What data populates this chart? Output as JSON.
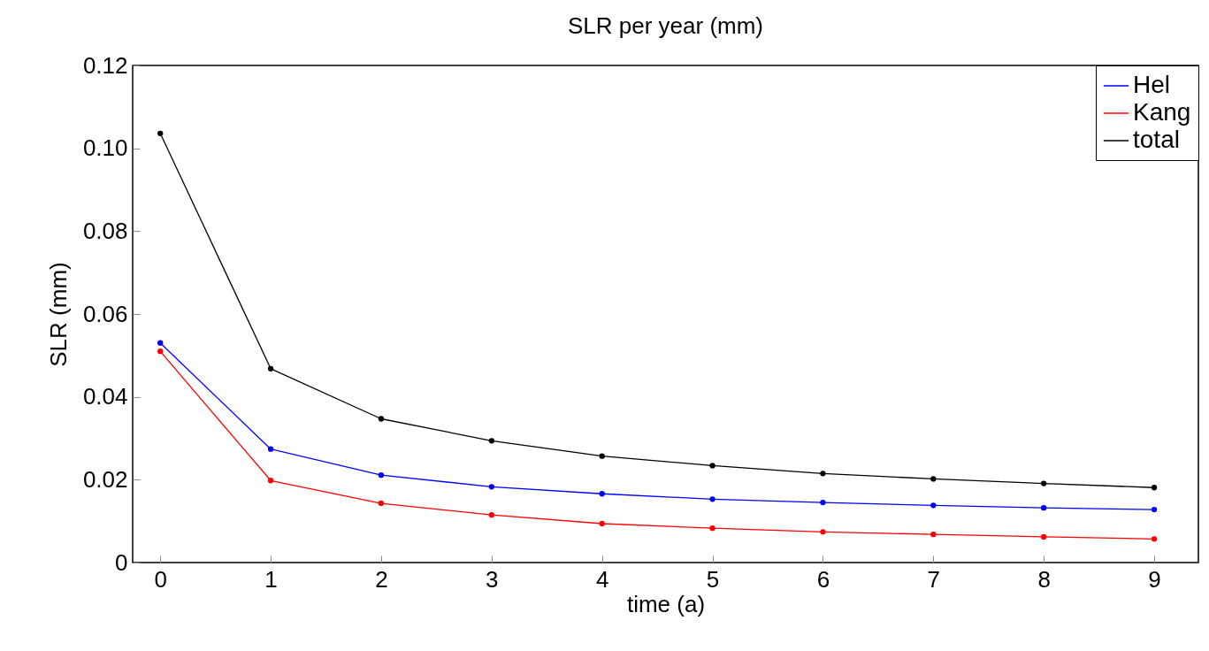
{
  "chart_data": {
    "type": "line",
    "title": "SLR per year (mm)",
    "xlabel": "time (a)",
    "ylabel": "SLR (mm)",
    "x": [
      0,
      1,
      2,
      3,
      4,
      5,
      6,
      7,
      8,
      9
    ],
    "series": [
      {
        "name": "Hel",
        "color": "#0000ff",
        "values": [
          0.053,
          0.0274,
          0.0211,
          0.0183,
          0.0166,
          0.0153,
          0.0145,
          0.0138,
          0.0132,
          0.0128
        ]
      },
      {
        "name": "Kang",
        "color": "#ff0000",
        "values": [
          0.051,
          0.0198,
          0.0143,
          0.0115,
          0.0094,
          0.0083,
          0.0074,
          0.0068,
          0.0062,
          0.0057
        ]
      },
      {
        "name": "total",
        "color": "#000000",
        "values": [
          0.1036,
          0.0468,
          0.0347,
          0.0294,
          0.0257,
          0.0234,
          0.0215,
          0.0202,
          0.0191,
          0.0181
        ]
      }
    ],
    "xlim": [
      -0.25,
      9.4
    ],
    "xticks": [
      0,
      1,
      2,
      3,
      4,
      5,
      6,
      7,
      8,
      9
    ],
    "ylim": [
      0,
      0.12
    ],
    "yticks": [
      0,
      0.02,
      0.04,
      0.06,
      0.08,
      {
        "value": 0.1,
        "label": "0.10"
      },
      0.12
    ],
    "legend": "top right",
    "marker": "circle",
    "line_style": "solid",
    "grid": false
  }
}
